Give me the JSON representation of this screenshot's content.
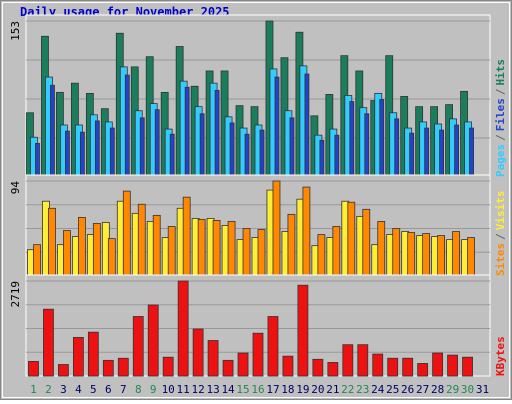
{
  "title": "Daily usage for November 2025",
  "legend_separator": "/",
  "chart_data": [
    {
      "type": "bar",
      "ylim": [
        0,
        153
      ],
      "yticks": [
        153
      ],
      "series": [
        {
          "name": "Pages",
          "color": "#33ccff",
          "values": [
            39,
            98,
            51,
            51,
            61,
            54,
            108,
            65,
            72,
            47,
            94,
            69,
            92,
            59,
            48,
            51,
            106,
            65,
            109,
            41,
            47,
            80,
            68,
            82,
            63,
            48,
            54,
            52,
            57,
            54,
            null
          ]
        },
        {
          "name": "Files",
          "color": "#2244cc",
          "values": [
            33,
            90,
            45,
            44,
            55,
            48,
            100,
            58,
            66,
            42,
            88,
            62,
            85,
            53,
            42,
            46,
            98,
            58,
            101,
            36,
            41,
            74,
            62,
            76,
            57,
            43,
            48,
            46,
            51,
            48,
            null
          ]
        },
        {
          "name": "Hits",
          "color": "#1a7d5c",
          "values": [
            63,
            138,
            83,
            92,
            82,
            67,
            141,
            108,
            118,
            83,
            128,
            89,
            104,
            104,
            70,
            69,
            153,
            117,
            142,
            60,
            81,
            119,
            104,
            75,
            119,
            79,
            69,
            69,
            71,
            84,
            null
          ]
        }
      ]
    },
    {
      "type": "bar",
      "ylim": [
        0,
        94
      ],
      "yticks": [
        94
      ],
      "series": [
        {
          "name": "Sites",
          "color": "#ff8800",
          "values": [
            31,
            67,
            45,
            58,
            52,
            37,
            84,
            71,
            60,
            49,
            78,
            56,
            55,
            54,
            47,
            46,
            94,
            61,
            88,
            41,
            49,
            73,
            66,
            54,
            47,
            43,
            42,
            40,
            44,
            38,
            null
          ]
        },
        {
          "name": "Visits",
          "color": "#ffee33",
          "values": [
            26,
            74,
            31,
            39,
            41,
            53,
            74,
            62,
            54,
            38,
            67,
            57,
            57,
            50,
            36,
            38,
            85,
            44,
            76,
            30,
            38,
            74,
            59,
            31,
            41,
            44,
            40,
            39,
            36,
            36,
            null
          ]
        }
      ]
    },
    {
      "type": "bar",
      "ylim": [
        0,
        2719
      ],
      "yticks": [
        2719
      ],
      "categories": [
        "1",
        "2",
        "3",
        "4",
        "5",
        "6",
        "7",
        "8",
        "9",
        "10",
        "11",
        "12",
        "13",
        "14",
        "15",
        "16",
        "17",
        "18",
        "19",
        "20",
        "21",
        "22",
        "23",
        "24",
        "25",
        "26",
        "27",
        "28",
        "29",
        "30",
        "31"
      ],
      "category_colors": [
        "#228855",
        "#228855",
        "#000066",
        "#000066",
        "#000066",
        "#000066",
        "#000066",
        "#228855",
        "#228855",
        "#000066",
        "#000066",
        "#000066",
        "#000066",
        "#000066",
        "#228855",
        "#228855",
        "#000066",
        "#000066",
        "#000066",
        "#000066",
        "#000066",
        "#228855",
        "#228855",
        "#000066",
        "#000066",
        "#000066",
        "#000066",
        "#000066",
        "#228855",
        "#228855",
        "#000066"
      ],
      "series": [
        {
          "name": "KBytes",
          "color": "#ee1111",
          "values": [
            418,
            1912,
            329,
            1105,
            1255,
            448,
            508,
            1703,
            2032,
            538,
            2719,
            1345,
            1016,
            448,
            657,
            1225,
            1703,
            568,
            2599,
            478,
            388,
            896,
            896,
            627,
            508,
            508,
            359,
            657,
            598,
            538,
            null
          ]
        }
      ]
    }
  ]
}
